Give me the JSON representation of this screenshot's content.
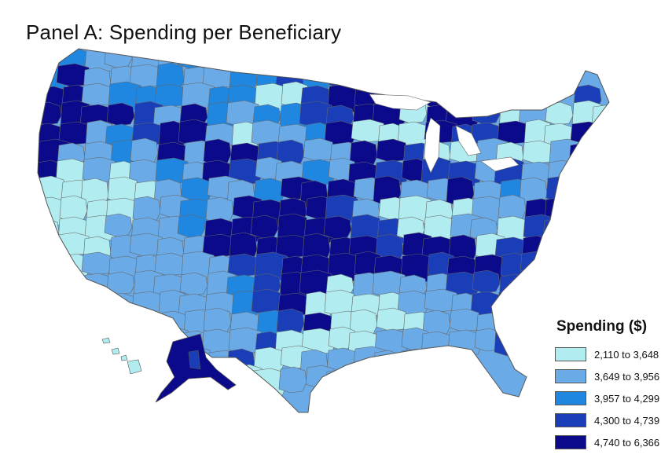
{
  "title": "Panel A: Spending per Beneficiary",
  "legend": {
    "title": "Spending ($)",
    "items": [
      {
        "label": "2,110 to 3,648",
        "color": "#b0ecf0"
      },
      {
        "label": "3,649 to 3,956",
        "color": "#6aaae6"
      },
      {
        "label": "3,957 to 4,299",
        "color": "#1f87e0"
      },
      {
        "label": "4,300 to 4,739",
        "color": "#1a3eb8"
      },
      {
        "label": "4,740 to 6,366",
        "color": "#0a0a8a"
      }
    ]
  },
  "map": {
    "region": "United States",
    "unit": "hospital referral regions",
    "border_color": "#666666"
  }
}
